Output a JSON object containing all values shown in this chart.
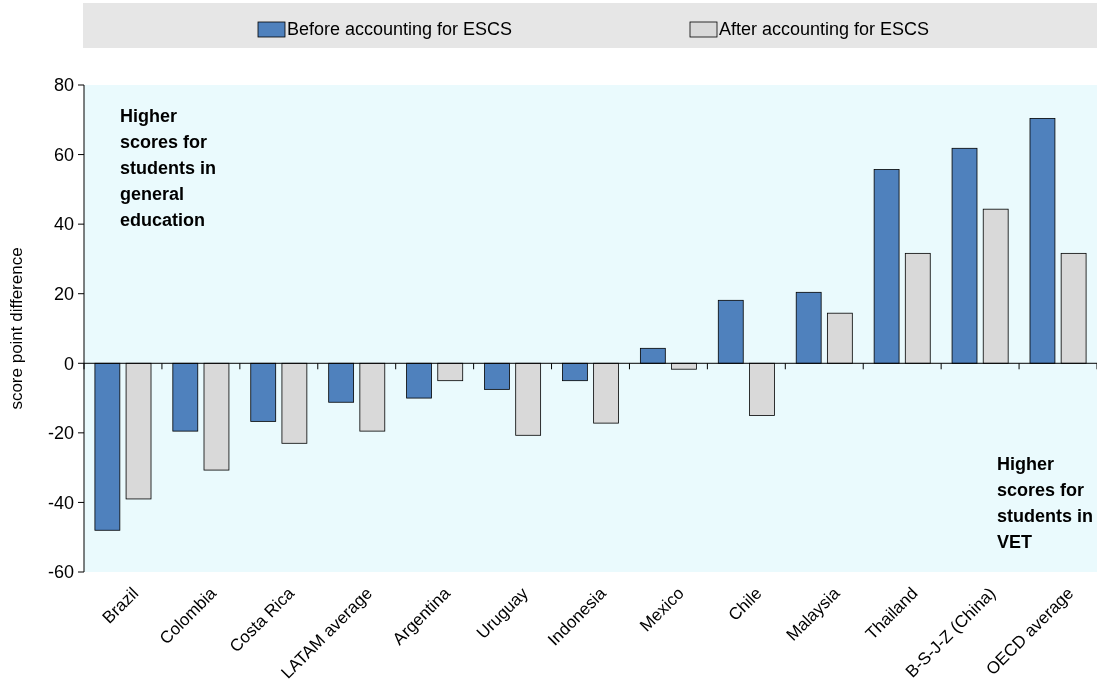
{
  "chart_data": {
    "type": "bar",
    "ylabel": "score point difference",
    "categories": [
      "Brazil",
      "Colombia",
      "Costa Rica",
      "LATAM average",
      "Argentina",
      "Uruguay",
      "Indonesia",
      "Mexico",
      "Chile",
      "Malaysia",
      "Thailand",
      "B-S-J-Z (China)",
      "OECD average"
    ],
    "series": [
      {
        "name": "Before accounting for ESCS",
        "color": "#4f81bd",
        "values": [
          -48,
          -19.5,
          -16.7,
          -11.2,
          -10,
          -7.5,
          -5,
          4.3,
          18.1,
          20.4,
          55.7,
          61.8,
          70.4
        ]
      },
      {
        "name": "After accounting for ESCS",
        "color": "#d9d9d9",
        "values": [
          -39,
          -30.7,
          -23,
          -19.5,
          -5,
          -20.7,
          -17.2,
          -1.7,
          -15,
          14.4,
          31.6,
          44.3,
          31.6
        ]
      }
    ],
    "ylim": [
      -60,
      80
    ],
    "yticks": [
      -60,
      -40,
      -20,
      0,
      20,
      40,
      60,
      80
    ],
    "legend": "top",
    "annotations": [
      "Higher scores for students in general education",
      "Higher scores for students in VET"
    ]
  }
}
